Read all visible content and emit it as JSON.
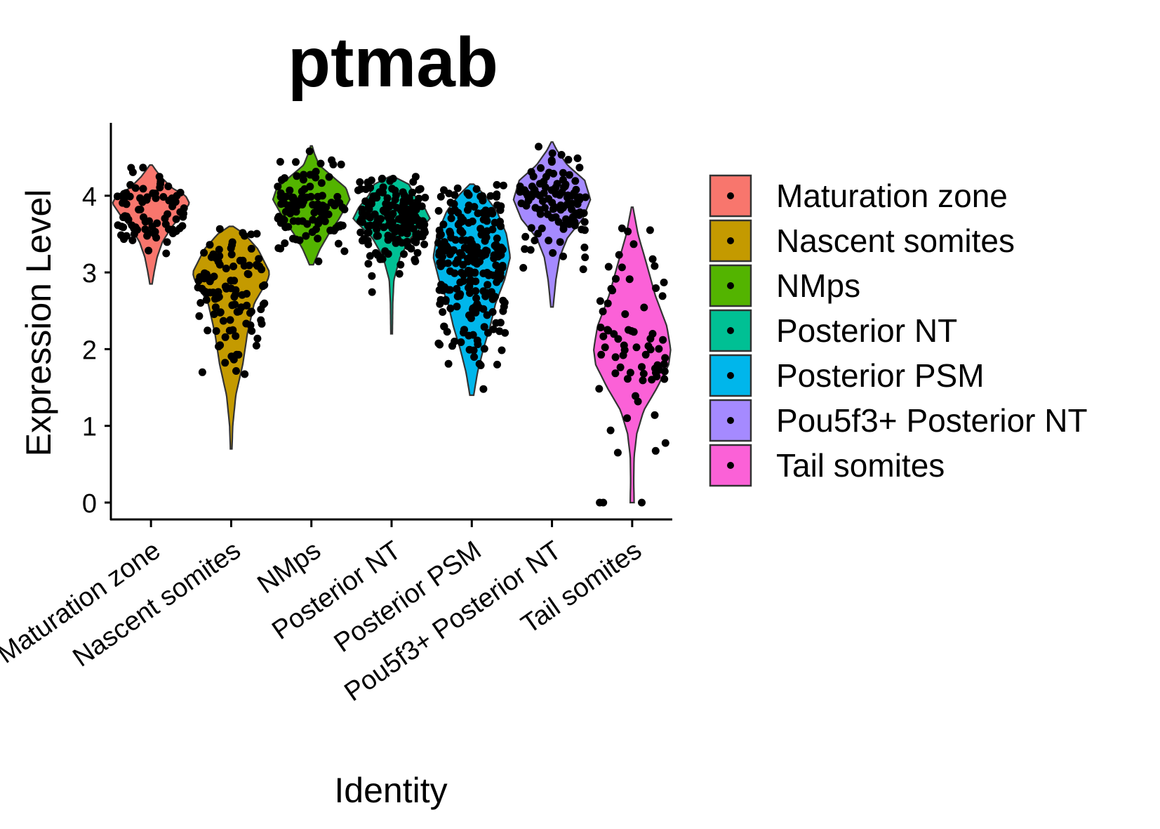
{
  "chart_data": {
    "type": "violin",
    "title": "ptmab",
    "xlabel": "Identity",
    "ylabel": "Expression Level",
    "ylim": [
      -0.22,
      4.95
    ],
    "yticks": [
      0,
      1,
      2,
      3,
      4
    ],
    "grid": false,
    "legend_position": "right",
    "categories": [
      "Maturation zone",
      "Nascent somites",
      "NMps",
      "Posterior NT",
      "Posterior PSM",
      "Pou5f3+ Posterior NT",
      "Tail somites"
    ],
    "colors": [
      "#F8766D",
      "#C49A00",
      "#53B400",
      "#00C094",
      "#00B6EB",
      "#A58AFF",
      "#FB61D7"
    ],
    "series": [
      {
        "name": "Maturation zone",
        "min": 2.85,
        "max": 4.4,
        "mean": 3.8,
        "sd": 0.25,
        "points": 80,
        "seed": 11,
        "profile": [
          [
            2.85,
            0.03
          ],
          [
            3.0,
            0.08
          ],
          [
            3.2,
            0.16
          ],
          [
            3.4,
            0.3
          ],
          [
            3.6,
            0.55
          ],
          [
            3.75,
            0.8
          ],
          [
            3.9,
            1.0
          ],
          [
            4.0,
            0.9
          ],
          [
            4.1,
            0.55
          ],
          [
            4.25,
            0.25
          ],
          [
            4.4,
            0.03
          ]
        ]
      },
      {
        "name": "Nascent somites",
        "min": 0.7,
        "max": 3.6,
        "mean": 2.7,
        "sd": 0.55,
        "points": 110,
        "seed": 23,
        "profile": [
          [
            0.7,
            0.02
          ],
          [
            1.0,
            0.04
          ],
          [
            1.4,
            0.12
          ],
          [
            1.8,
            0.3
          ],
          [
            2.2,
            0.42
          ],
          [
            2.6,
            0.6
          ],
          [
            2.9,
            0.95
          ],
          [
            3.0,
            1.0
          ],
          [
            3.3,
            0.7
          ],
          [
            3.5,
            0.35
          ],
          [
            3.6,
            0.05
          ]
        ]
      },
      {
        "name": "NMps",
        "min": 3.1,
        "max": 4.65,
        "mean": 3.9,
        "sd": 0.3,
        "points": 100,
        "seed": 37,
        "profile": [
          [
            3.1,
            0.05
          ],
          [
            3.3,
            0.22
          ],
          [
            3.5,
            0.45
          ],
          [
            3.7,
            0.72
          ],
          [
            3.95,
            1.0
          ],
          [
            4.1,
            0.9
          ],
          [
            4.25,
            0.55
          ],
          [
            4.4,
            0.2
          ],
          [
            4.55,
            0.08
          ],
          [
            4.65,
            0.02
          ]
        ]
      },
      {
        "name": "Posterior NT",
        "min": 2.2,
        "max": 4.25,
        "mean": 3.75,
        "sd": 0.3,
        "points": 170,
        "seed": 41,
        "profile": [
          [
            2.2,
            0.02
          ],
          [
            2.6,
            0.03
          ],
          [
            2.9,
            0.06
          ],
          [
            3.2,
            0.22
          ],
          [
            3.45,
            0.5
          ],
          [
            3.7,
            1.0
          ],
          [
            3.85,
            0.85
          ],
          [
            4.0,
            0.6
          ],
          [
            4.15,
            0.45
          ],
          [
            4.25,
            0.05
          ]
        ]
      },
      {
        "name": "Posterior PSM",
        "min": 1.4,
        "max": 4.15,
        "mean": 3.1,
        "sd": 0.6,
        "points": 230,
        "seed": 53,
        "profile": [
          [
            1.4,
            0.05
          ],
          [
            1.7,
            0.15
          ],
          [
            2.0,
            0.3
          ],
          [
            2.3,
            0.48
          ],
          [
            2.6,
            0.62
          ],
          [
            2.9,
            0.85
          ],
          [
            3.2,
            1.0
          ],
          [
            3.5,
            0.9
          ],
          [
            3.8,
            0.65
          ],
          [
            4.0,
            0.35
          ],
          [
            4.15,
            0.05
          ]
        ]
      },
      {
        "name": "Pou5f3+ Posterior NT",
        "min": 2.55,
        "max": 4.7,
        "mean": 3.9,
        "sd": 0.32,
        "points": 110,
        "seed": 67,
        "profile": [
          [
            2.55,
            0.03
          ],
          [
            2.9,
            0.1
          ],
          [
            3.2,
            0.2
          ],
          [
            3.45,
            0.4
          ],
          [
            3.7,
            0.8
          ],
          [
            3.95,
            1.0
          ],
          [
            4.2,
            0.85
          ],
          [
            4.4,
            0.4
          ],
          [
            4.6,
            0.12
          ],
          [
            4.7,
            0.02
          ]
        ]
      },
      {
        "name": "Tail somites",
        "min": 0.0,
        "max": 3.85,
        "mean": 2.0,
        "sd": 0.6,
        "points": 70,
        "seed": 79,
        "profile": [
          [
            0.0,
            0.05
          ],
          [
            0.3,
            0.04
          ],
          [
            0.6,
            0.05
          ],
          [
            0.9,
            0.12
          ],
          [
            1.2,
            0.3
          ],
          [
            1.5,
            0.65
          ],
          [
            1.8,
            0.95
          ],
          [
            2.0,
            1.0
          ],
          [
            2.3,
            0.9
          ],
          [
            2.7,
            0.6
          ],
          [
            3.1,
            0.38
          ],
          [
            3.5,
            0.15
          ],
          [
            3.85,
            0.02
          ]
        ],
        "zeros": 3
      }
    ]
  }
}
